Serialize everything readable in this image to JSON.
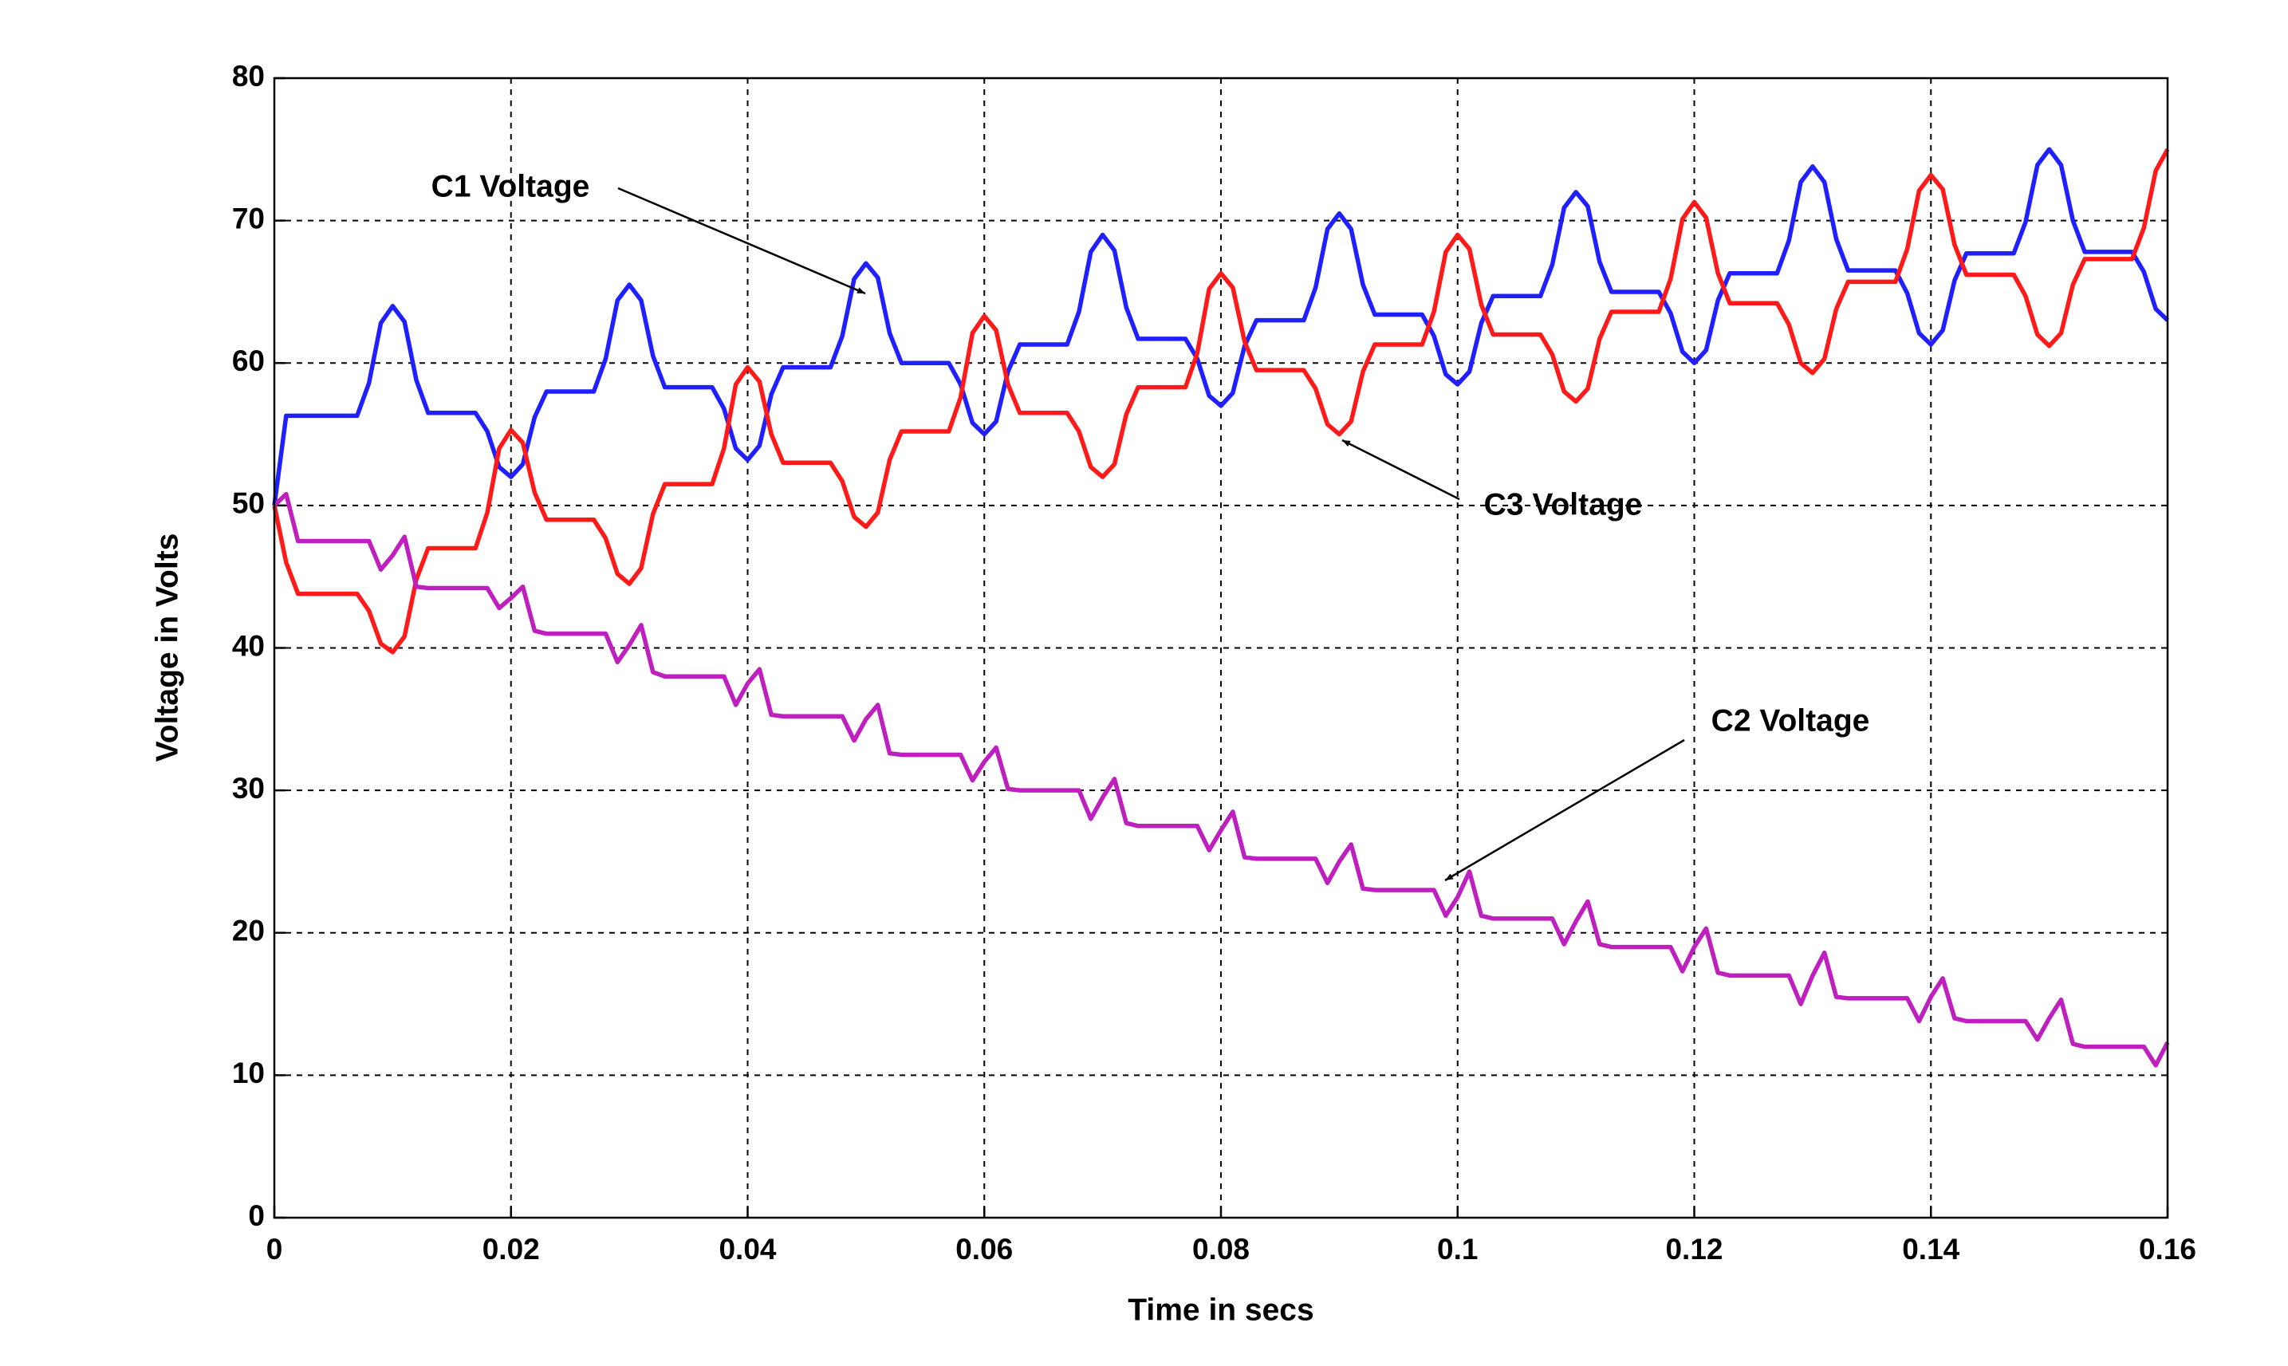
{
  "chart_data": {
    "type": "line",
    "xlabel": "Time in secs",
    "ylabel": "Voltage in Volts",
    "xlim": [
      0,
      0.16
    ],
    "ylim": [
      0,
      80
    ],
    "xticks": [
      0,
      0.02,
      0.04,
      0.06,
      0.08,
      0.1,
      0.12,
      0.14,
      0.16
    ],
    "yticks": [
      0,
      10,
      20,
      30,
      40,
      50,
      60,
      70,
      80
    ],
    "grid": true,
    "x": [
      0,
      0.001,
      0.002,
      0.003,
      0.004,
      0.005,
      0.006,
      0.007,
      0.008,
      0.009,
      0.01,
      0.011,
      0.012,
      0.013,
      0.014,
      0.015,
      0.016,
      0.017,
      0.018,
      0.019,
      0.02,
      0.021,
      0.022,
      0.023,
      0.024,
      0.025,
      0.026,
      0.027,
      0.028,
      0.029,
      0.03,
      0.031,
      0.032,
      0.033,
      0.034,
      0.035,
      0.036,
      0.037,
      0.038,
      0.039,
      0.04,
      0.041,
      0.042,
      0.043,
      0.044,
      0.045,
      0.046,
      0.047,
      0.048,
      0.049,
      0.05,
      0.051,
      0.052,
      0.053,
      0.054,
      0.055,
      0.056,
      0.057,
      0.058,
      0.059,
      0.06,
      0.061,
      0.062,
      0.063,
      0.064,
      0.065,
      0.066,
      0.067,
      0.068,
      0.069,
      0.07,
      0.071,
      0.072,
      0.073,
      0.074,
      0.075,
      0.076,
      0.077,
      0.078,
      0.079,
      0.08,
      0.081,
      0.082,
      0.083,
      0.084,
      0.085,
      0.086,
      0.087,
      0.088,
      0.089,
      0.09,
      0.091,
      0.092,
      0.093,
      0.094,
      0.095,
      0.096,
      0.097,
      0.098,
      0.099,
      0.1,
      0.101,
      0.102,
      0.103,
      0.104,
      0.105,
      0.106,
      0.107,
      0.108,
      0.109,
      0.11,
      0.111,
      0.112,
      0.113,
      0.114,
      0.115,
      0.116,
      0.117,
      0.118,
      0.119,
      0.12,
      0.121,
      0.122,
      0.123,
      0.124,
      0.125,
      0.126,
      0.127,
      0.128,
      0.129,
      0.13,
      0.131,
      0.132,
      0.133,
      0.134,
      0.135,
      0.136,
      0.137,
      0.138,
      0.139,
      0.14,
      0.141,
      0.142,
      0.143,
      0.144,
      0.145,
      0.146,
      0.147,
      0.148,
      0.149,
      0.15,
      0.151,
      0.152,
      0.153,
      0.154,
      0.155,
      0.156,
      0.157,
      0.158,
      0.159,
      0.16
    ],
    "series": [
      {
        "name": "C1 Voltage",
        "color": "#1f1fff",
        "values": [
          50,
          56.3,
          56.3,
          56.3,
          56.3,
          56.3,
          56.3,
          56.3,
          58.6,
          62.8,
          64,
          62.9,
          58.8,
          56.5,
          56.5,
          56.5,
          56.5,
          56.5,
          55.2,
          52.7,
          52,
          52.9,
          56.2,
          58,
          58,
          58,
          58,
          58,
          60.3,
          64.4,
          65.5,
          64.4,
          60.5,
          58.3,
          58.3,
          58.3,
          58.3,
          58.3,
          56.8,
          54,
          53.2,
          54.2,
          57.8,
          59.7,
          59.7,
          59.7,
          59.7,
          59.7,
          61.9,
          65.9,
          67,
          66,
          62.1,
          60,
          60,
          60,
          60,
          60,
          58.5,
          55.8,
          55,
          55.9,
          59.4,
          61.3,
          61.3,
          61.3,
          61.3,
          61.3,
          63.6,
          67.8,
          69,
          67.9,
          63.9,
          61.7,
          61.7,
          61.7,
          61.7,
          61.7,
          60.3,
          57.7,
          57,
          57.9,
          61.2,
          63,
          63,
          63,
          63,
          63,
          65.3,
          69.4,
          70.5,
          69.4,
          65.5,
          63.4,
          63.4,
          63.4,
          63.4,
          63.4,
          61.9,
          59.2,
          58.5,
          59.4,
          62.8,
          64.7,
          64.7,
          64.7,
          64.7,
          64.7,
          66.9,
          70.9,
          72,
          71,
          67.1,
          65,
          65,
          65,
          65,
          65,
          63.5,
          60.8,
          60,
          60.9,
          64.4,
          66.3,
          66.3,
          66.3,
          66.3,
          66.3,
          68.6,
          72.7,
          73.8,
          72.7,
          68.7,
          66.5,
          66.5,
          66.5,
          66.5,
          66.5,
          64.9,
          62.1,
          61.3,
          62.3,
          65.8,
          67.7,
          67.7,
          67.7,
          67.7,
          67.7,
          69.9,
          73.9,
          75,
          73.9,
          70,
          67.8,
          67.8,
          67.8,
          67.8,
          67.8,
          66.4,
          63.8,
          63
        ]
      },
      {
        "name": "C3 Voltage",
        "color": "#ff1a1a",
        "values": [
          50,
          46,
          43.8,
          43.8,
          43.8,
          43.8,
          43.8,
          43.8,
          42.6,
          40.3,
          39.7,
          40.8,
          44.8,
          47,
          47,
          47,
          47,
          47,
          49.5,
          54,
          55.3,
          54.4,
          50.9,
          49,
          49,
          49,
          49,
          49,
          47.7,
          45.2,
          44.5,
          45.6,
          49.4,
          51.5,
          51.5,
          51.5,
          51.5,
          51.5,
          54,
          58.5,
          59.7,
          58.7,
          55,
          53,
          53,
          53,
          53,
          53,
          51.7,
          49.2,
          48.5,
          49.5,
          53.2,
          55.2,
          55.2,
          55.2,
          55.2,
          55.2,
          57.6,
          62.1,
          63.3,
          62.3,
          58.5,
          56.5,
          56.5,
          56.5,
          56.5,
          56.5,
          55.2,
          52.7,
          52,
          52.9,
          56.4,
          58.3,
          58.3,
          58.3,
          58.3,
          58.3,
          60.7,
          65.2,
          66.3,
          65.3,
          61.5,
          59.5,
          59.5,
          59.5,
          59.5,
          59.5,
          58.2,
          55.7,
          55,
          55.9,
          59.4,
          61.3,
          61.3,
          61.3,
          61.3,
          61.3,
          63.6,
          67.8,
          69,
          68,
          64.1,
          62,
          62,
          62,
          62,
          62,
          60.6,
          58,
          57.3,
          58.2,
          61.7,
          63.6,
          63.6,
          63.6,
          63.6,
          63.6,
          65.9,
          70.1,
          71.3,
          70.2,
          66.3,
          64.2,
          64.2,
          64.2,
          64.2,
          64.2,
          62.7,
          60,
          59.3,
          60.3,
          63.8,
          65.7,
          65.7,
          65.7,
          65.7,
          65.7,
          68,
          72.1,
          73.2,
          72.2,
          68.3,
          66.2,
          66.2,
          66.2,
          66.2,
          66.2,
          64.7,
          62,
          61.2,
          62.1,
          65.5,
          67.3,
          67.3,
          67.3,
          67.3,
          67.3,
          69.5,
          73.5,
          75
        ]
      },
      {
        "name": "C2 Voltage",
        "color": "#bf1fbf",
        "values": [
          50,
          50.8,
          47.5,
          47.5,
          47.5,
          47.5,
          47.5,
          47.5,
          47.5,
          45.5,
          46.5,
          47.8,
          44.3,
          44.2,
          44.2,
          44.2,
          44.2,
          44.2,
          44.2,
          42.8,
          43.5,
          44.3,
          41.2,
          41,
          41,
          41,
          41,
          41,
          41,
          39,
          40.2,
          41.6,
          38.3,
          38,
          38,
          38,
          38,
          38,
          38,
          36,
          37.5,
          38.5,
          35.3,
          35.2,
          35.2,
          35.2,
          35.2,
          35.2,
          35.2,
          33.5,
          35,
          36,
          32.6,
          32.5,
          32.5,
          32.5,
          32.5,
          32.5,
          32.5,
          30.7,
          32,
          33,
          30.1,
          30,
          30,
          30,
          30,
          30,
          30,
          28,
          29.5,
          30.8,
          27.7,
          27.5,
          27.5,
          27.5,
          27.5,
          27.5,
          27.5,
          25.8,
          27.2,
          28.5,
          25.3,
          25.2,
          25.2,
          25.2,
          25.2,
          25.2,
          25.2,
          23.5,
          25,
          26.2,
          23.1,
          23,
          23,
          23,
          23,
          23,
          23,
          21.2,
          22.5,
          24.3,
          21.2,
          21,
          21,
          21,
          21,
          21,
          21,
          19.2,
          20.8,
          22.2,
          19.2,
          19,
          19,
          19,
          19,
          19,
          19,
          17.3,
          19,
          20.3,
          17.2,
          17,
          17,
          17,
          17,
          17,
          17,
          15,
          17,
          18.6,
          15.5,
          15.4,
          15.4,
          15.4,
          15.4,
          15.4,
          15.4,
          13.8,
          15.5,
          16.8,
          14,
          13.8,
          13.8,
          13.8,
          13.8,
          13.8,
          13.8,
          12.5,
          14,
          15.3,
          12.2,
          12,
          12,
          12,
          12,
          12,
          12,
          10.7,
          12.3
        ]
      }
    ]
  }
}
